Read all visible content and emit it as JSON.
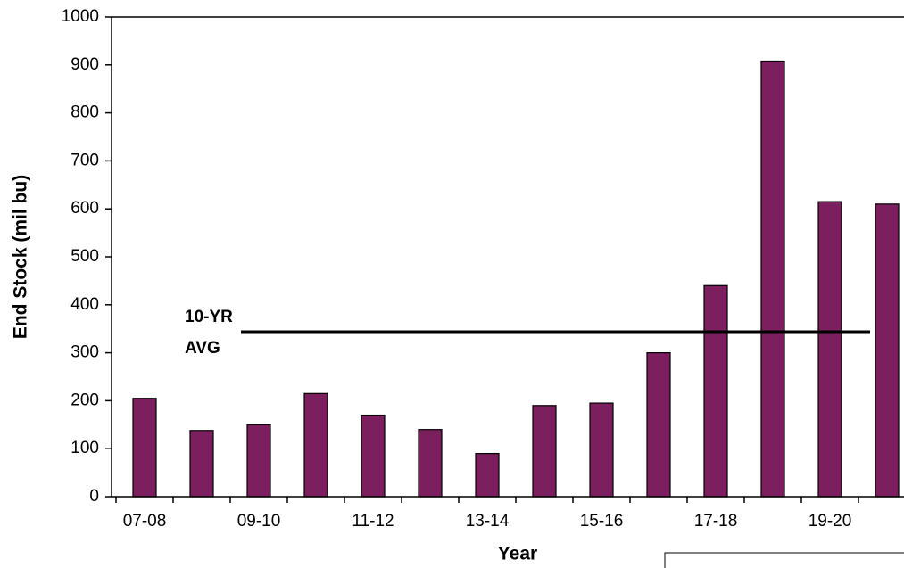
{
  "chart_data": {
    "type": "bar",
    "y_label": "End Stock (mil bu)",
    "x_label": "Year",
    "categories": [
      "07-08",
      null,
      "09-10",
      null,
      "11-12",
      null,
      "13-14",
      null,
      "15-16",
      null,
      "17-18",
      null,
      "19-20",
      null
    ],
    "values": [
      205,
      138,
      150,
      215,
      170,
      140,
      90,
      190,
      195,
      300,
      440,
      908,
      615,
      610
    ],
    "color": "#7b1f5e",
    "ylim": [
      0,
      1000
    ],
    "yticks": [
      0,
      100,
      200,
      300,
      400,
      500,
      600,
      700,
      800,
      900,
      1000
    ],
    "grid": false,
    "reference_line": {
      "value": 343,
      "label_lines": [
        "10-YR",
        "AVG"
      ]
    }
  }
}
